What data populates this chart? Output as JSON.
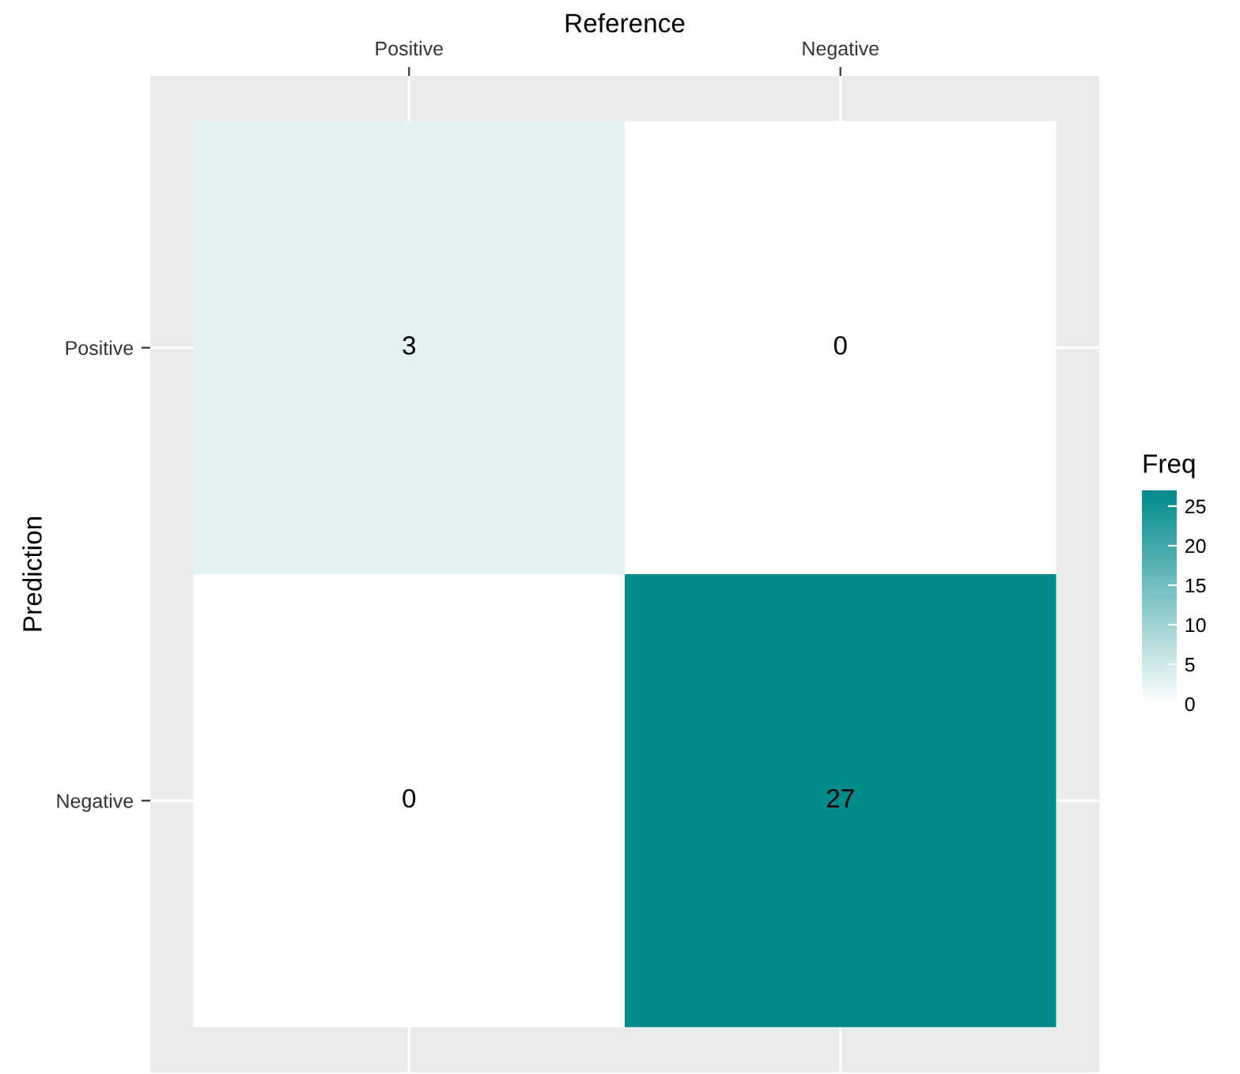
{
  "chart_data": {
    "type": "heatmap",
    "xlabel": "Reference",
    "ylabel": "Prediction",
    "clabel": "Freq",
    "categories": [
      "Positive",
      "Negative"
    ],
    "y_categories": [
      "Positive",
      "Negative"
    ],
    "cells": [
      [
        3,
        0
      ],
      [
        0,
        27
      ]
    ],
    "clim": [
      0,
      27
    ],
    "cticks": [
      0,
      5,
      10,
      15,
      20,
      25
    ],
    "colors": [
      "#ffffff",
      "#008b8b"
    ],
    "data_labels": true,
    "grid": true
  }
}
